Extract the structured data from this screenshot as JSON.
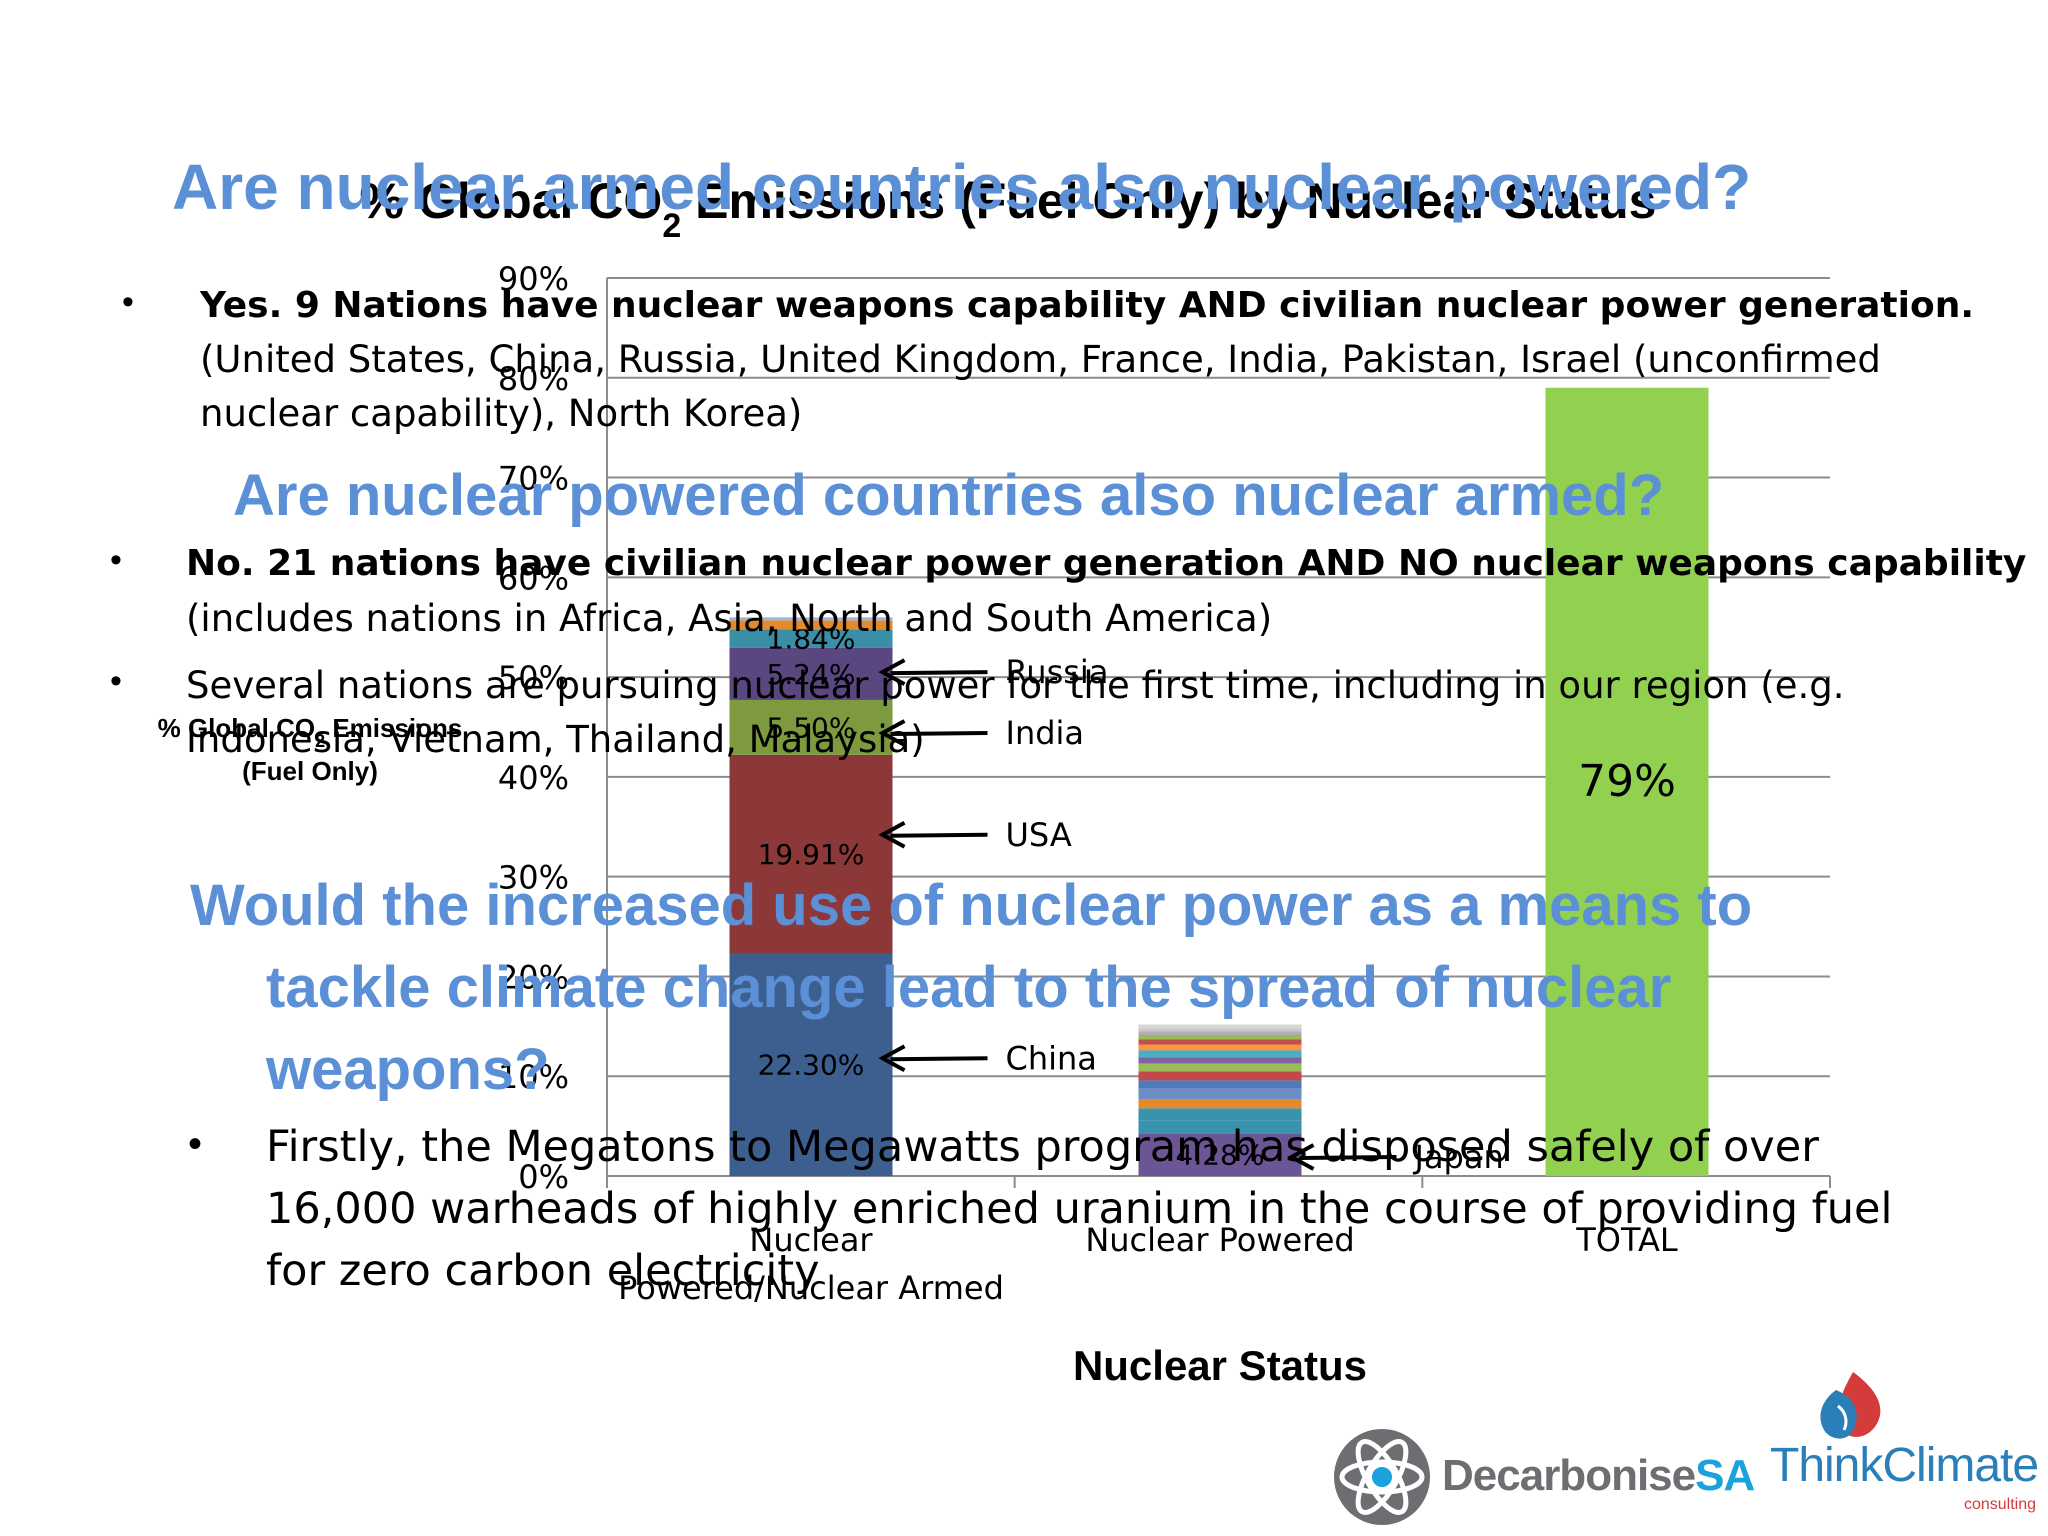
{
  "chart_data": {
    "type": "bar",
    "stacked": true,
    "title": "% Global CO2 Emissions (Fuel Only) by Nuclear Status",
    "title_main": "% Global CO",
    "title_sub": "2",
    "title_rest": " Emissions (Fuel Only) by Nuclear Status",
    "ylabel_line1": "% Global CO",
    "ylabel_sub": "2",
    "ylabel_line1_rest": " Emissions",
    "ylabel_line2": "(Fuel Only)",
    "xlabel": "Nuclear Status",
    "categories": [
      "Nuclear Powered/Nuclear Armed",
      "Nuclear Powered",
      "TOTAL"
    ],
    "category_labels": [
      [
        "Nuclear",
        "Powered/Nuclear Armed"
      ],
      [
        "Nuclear Powered"
      ],
      [
        "TOTAL"
      ]
    ],
    "ylim": [
      0,
      90
    ],
    "yticks": [
      "0%",
      "10%",
      "20%",
      "30%",
      "40%",
      "50%",
      "60%",
      "70%",
      "80%",
      "90%"
    ],
    "grid": true,
    "legend": "none",
    "stacks": [
      {
        "category": "Nuclear Powered/Nuclear Armed",
        "segments": [
          {
            "value": 22.3,
            "color": "#3d5f8f",
            "label": "22.30%"
          },
          {
            "value": 19.91,
            "color": "#8c3838",
            "label": "19.91%"
          },
          {
            "value": 5.5,
            "color": "#7d9a3f",
            "label": "5.50%"
          },
          {
            "value": 5.24,
            "color": "#5b4780",
            "label": "5.24%"
          },
          {
            "value": 1.84,
            "color": "#3a8ea6",
            "label": "1.84%"
          },
          {
            "value": 0.9,
            "color": "#e38a2c",
            "label": ""
          },
          {
            "value": 0.3,
            "color": "#9bb6db",
            "label": ""
          }
        ]
      },
      {
        "category": "Nuclear Powered",
        "segments": [
          {
            "value": 4.28,
            "color": "#6b5595",
            "label": "4.28%"
          },
          {
            "value": 1.3,
            "color": "#3a93ad",
            "label": ""
          },
          {
            "value": 1.2,
            "color": "#3a93ad",
            "label": ""
          },
          {
            "value": 0.9,
            "color": "#e38a2c",
            "label": ""
          },
          {
            "value": 1.1,
            "color": "#6c8ec4",
            "label": ""
          },
          {
            "value": 0.8,
            "color": "#4f7bbd",
            "label": ""
          },
          {
            "value": 0.9,
            "color": "#c04a4a",
            "label": ""
          },
          {
            "value": 0.8,
            "color": "#9bbb59",
            "label": ""
          },
          {
            "value": 0.6,
            "color": "#8064a2",
            "label": ""
          },
          {
            "value": 0.7,
            "color": "#4bacc6",
            "label": ""
          },
          {
            "value": 0.6,
            "color": "#f79646",
            "label": ""
          },
          {
            "value": 0.5,
            "color": "#c0504d",
            "label": ""
          },
          {
            "value": 0.5,
            "color": "#9bbb59",
            "label": ""
          },
          {
            "value": 0.3,
            "color": "#b9a6d1",
            "label": ""
          },
          {
            "value": 0.3,
            "color": "#c9c9c9",
            "label": ""
          },
          {
            "value": 0.4,
            "color": "#d8d8d8",
            "label": ""
          }
        ]
      },
      {
        "category": "TOTAL",
        "segments": [
          {
            "value": 79,
            "color": "#92d050",
            "label": "79%"
          }
        ]
      }
    ],
    "annotations": [
      {
        "text": "China",
        "category": "Nuclear Powered/Nuclear Armed",
        "y": 11.8
      },
      {
        "text": "USA",
        "category": "Nuclear Powered/Nuclear Armed",
        "y": 34.2
      },
      {
        "text": "India",
        "category": "Nuclear Powered/Nuclear Armed",
        "y": 44.4
      },
      {
        "text": "Russia",
        "category": "Nuclear Powered/Nuclear Armed",
        "y": 50.5
      },
      {
        "text": "Japan",
        "category": "Nuclear Powered",
        "y": 1.9
      }
    ]
  },
  "overlay": {
    "heading1": "Are nuclear armed countries also nuclear powered?",
    "bullet1_bold": "Yes. 9 Nations have nuclear weapons capability AND civilian nuclear power generation.",
    "bullet1_line2": "(United States, China, Russia, United Kingdom, France, India, Pakistan, Israel (unconfirmed",
    "bullet1_line3": "nuclear capability), North Korea)",
    "heading2": "Are nuclear powered countries also nuclear armed?",
    "bullet2_bold": "No. 21 nations have civilian nuclear power generation AND NO nuclear weapons capability",
    "bullet2_line2": "(includes nations in Africa, Asia, North and South America)",
    "bullet3_line1": "Several nations are pursuing nuclear power for the first time, including in our region (e.g.",
    "bullet3_line2": "Indonesia, Vietnam, Thailand, Malaysia)",
    "heading3_line1": "Would the increased use of nuclear power as a means to",
    "heading3_line2": "tackle climate change lead to the spread of nuclear",
    "heading3_line3": "weapons?",
    "bullet4_line1": "Firstly, the Megatons to Megawatts program has disposed safely of over",
    "bullet4_line2": "16,000 warheads of highly enriched uranium in the course of providing fuel",
    "bullet4_line3": "for zero carbon electricity"
  },
  "logos": {
    "decarbonise_a": "Decarbonise",
    "decarbonise_b": "SA",
    "thinkclimate_a": "Think",
    "thinkclimate_b": "Climate",
    "thinkclimate_sub": "consulting"
  },
  "colors": {
    "heading": "#5b8fd6",
    "grid": "#8c8c8c",
    "decarbonise_grey": "#6d6e71",
    "decarbonise_blue": "#1ba1dc",
    "thinkclimate_blue": "#2a7fb8",
    "thinkclimate_red": "#d43c3c"
  }
}
